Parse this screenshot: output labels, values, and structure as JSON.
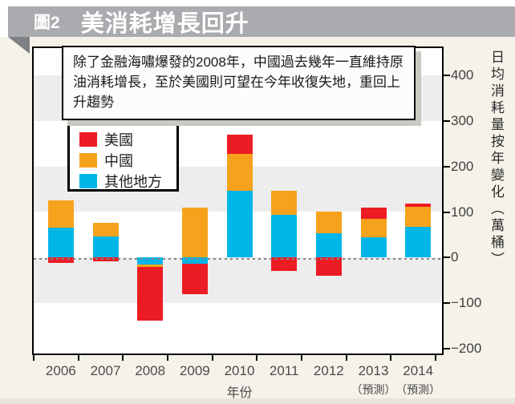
{
  "page": {
    "figure_label": "圖2",
    "title": "美消耗增長回升",
    "annotation": "除了金融海嘯爆發的2008年，中國過去幾年一直維持原油消耗增長，至於美國則可望在今年收復失地，重回上升趨勢"
  },
  "chart_data": {
    "type": "bar",
    "stacked": true,
    "title": "美消耗增長回升",
    "xlabel": "年份",
    "ylabel": "日均消耗量按年變化（萬桶）",
    "ylim": [
      -200,
      400
    ],
    "yticks": [
      400,
      300,
      200,
      100,
      0,
      -100,
      -200
    ],
    "grid_bands": "alternating gray every 100 units",
    "legend_position": "upper-left box",
    "categories": [
      "2006",
      "2007",
      "2008",
      "2009",
      "2010",
      "2011",
      "2012",
      "2013",
      "2014"
    ],
    "category_notes": [
      "",
      "",
      "",
      "",
      "",
      "",
      "",
      "（預測）",
      "（預測）"
    ],
    "series": [
      {
        "name": "美國",
        "color": "#EC1C24",
        "values": [
          -12,
          -9,
          -118,
          -67,
          42,
          -30,
          -40,
          24,
          7
        ]
      },
      {
        "name": "中國",
        "color": "#F7A21C",
        "values": [
          60,
          30,
          -6,
          110,
          80,
          53,
          47,
          41,
          44
        ]
      },
      {
        "name": "其他地方",
        "color": "#00B5E8",
        "values": [
          65,
          47,
          -15,
          -13,
          147,
          93,
          54,
          44,
          68
        ]
      }
    ],
    "stack_order_from_axis": [
      "其他地方",
      "中國",
      "美國"
    ],
    "colors": {
      "us_red": "#EC1C24",
      "china_orange": "#F7A21C",
      "other_blue": "#00B5E8",
      "band_gray": "#EDEDED",
      "header_gray": "#A9ABAE",
      "page_cream": "#F5F2E9"
    }
  }
}
